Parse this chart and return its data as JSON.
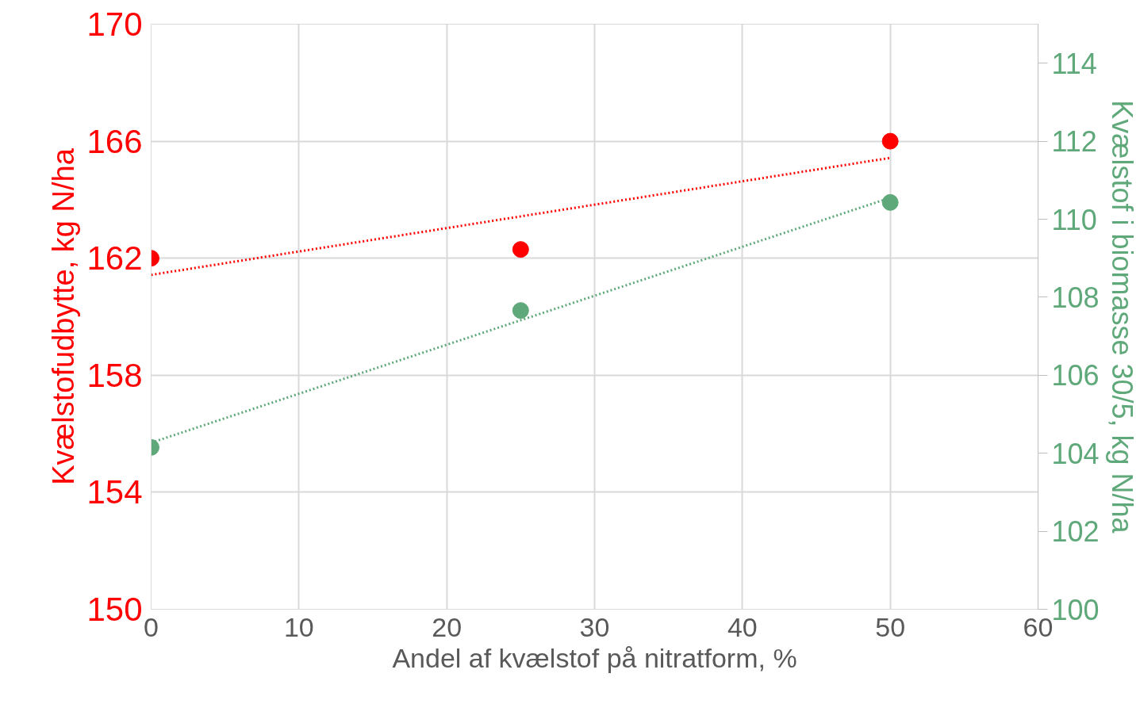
{
  "chart_data": {
    "type": "scatter",
    "xlabel": "Andel af kvælstof på nitratform, %",
    "ylabel": "Kvælstofudbytte, kg N/ha",
    "y2label": "Kvælstof i biomasse 30/5, kg N/ha",
    "xlim": [
      0,
      60
    ],
    "xticks": [
      0,
      10,
      20,
      30,
      40,
      50,
      60
    ],
    "ylim": [
      150,
      170
    ],
    "yticks": [
      150,
      154,
      158,
      162,
      166,
      170
    ],
    "y2lim": [
      100,
      115
    ],
    "y2ticks": [
      100,
      102,
      104,
      106,
      108,
      110,
      112,
      114
    ],
    "grid": true,
    "marker": "circle",
    "series": [
      {
        "color": "#ff0000",
        "x": [
          0,
          25,
          50
        ],
        "values": [
          162.0,
          162.3,
          166.0
        ]
      },
      {
        "color": "#5fa87a",
        "axis": "y2",
        "x": [
          0,
          25,
          50
        ],
        "values": [
          104.15,
          107.66,
          110.43
        ]
      },
      {
        "type": "line",
        "color": "#ff0000",
        "line_style": "dotted",
        "marker": "none",
        "x": [
          0,
          50
        ],
        "values": [
          161.43,
          165.43
        ]
      },
      {
        "type": "line",
        "color": "#5fa87a",
        "line_style": "dotted",
        "marker": "none",
        "axis": "y2",
        "x": [
          0,
          50
        ],
        "values": [
          104.27,
          110.55
        ]
      }
    ]
  }
}
